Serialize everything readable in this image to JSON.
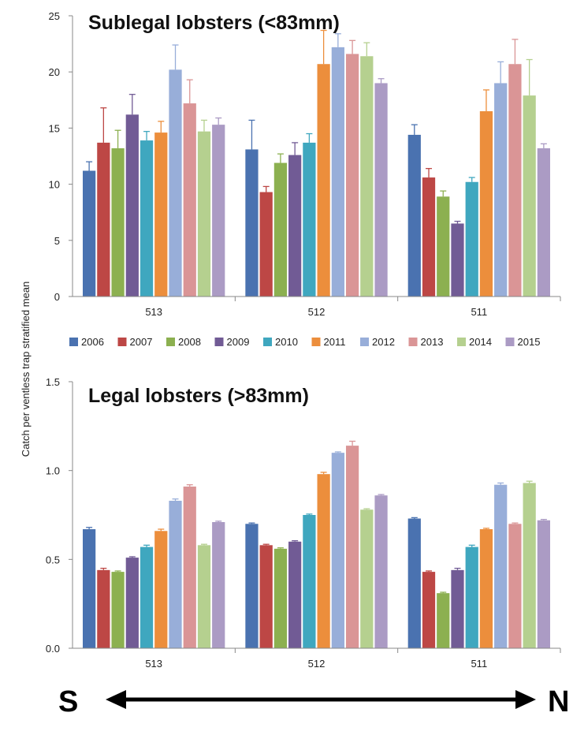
{
  "colors": {
    "2006": "#4a72b0",
    "2007": "#bd4745",
    "2008": "#8cb050",
    "2009": "#715b95",
    "2010": "#3fa7bf",
    "2011": "#ec8e3c",
    "2012": "#98aed9",
    "2013": "#da9596",
    "2014": "#b5d08f",
    "2015": "#ab9bc4"
  },
  "ylabel": "Catch per ventless trap stratified mean",
  "legend": [
    "2006",
    "2007",
    "2008",
    "2009",
    "2010",
    "2011",
    "2012",
    "2013",
    "2014",
    "2015"
  ],
  "direction": {
    "left": "S",
    "right": "N"
  },
  "chart_data": [
    {
      "type": "bar",
      "title": "Sublegal lobsters (<83mm)",
      "categories": [
        "513",
        "512",
        "511"
      ],
      "yticks": [
        "0",
        "5",
        "10",
        "15",
        "20",
        "25"
      ],
      "ylim": [
        0,
        25
      ],
      "series": [
        {
          "name": "2006",
          "values": [
            11.2,
            13.1,
            14.4
          ],
          "errors": [
            0.8,
            2.6,
            0.9
          ]
        },
        {
          "name": "2007",
          "values": [
            13.7,
            9.3,
            10.6
          ],
          "errors": [
            3.1,
            0.5,
            0.8
          ]
        },
        {
          "name": "2008",
          "values": [
            13.2,
            11.9,
            8.9
          ],
          "errors": [
            1.6,
            0.8,
            0.5
          ]
        },
        {
          "name": "2009",
          "values": [
            16.2,
            12.6,
            6.5
          ],
          "errors": [
            1.8,
            1.1,
            0.2
          ]
        },
        {
          "name": "2010",
          "values": [
            13.9,
            13.7,
            10.2
          ],
          "errors": [
            0.8,
            0.8,
            0.4
          ]
        },
        {
          "name": "2011",
          "values": [
            14.6,
            20.7,
            16.5
          ],
          "errors": [
            1.0,
            3.0,
            1.9
          ]
        },
        {
          "name": "2012",
          "values": [
            20.2,
            22.2,
            19.0
          ],
          "errors": [
            2.2,
            1.2,
            1.9
          ]
        },
        {
          "name": "2013",
          "values": [
            17.2,
            21.6,
            20.7
          ],
          "errors": [
            2.1,
            1.2,
            2.2
          ]
        },
        {
          "name": "2014",
          "values": [
            14.7,
            21.4,
            17.9
          ],
          "errors": [
            1.0,
            1.2,
            3.2
          ]
        },
        {
          "name": "2015",
          "values": [
            15.3,
            19.0,
            13.2
          ],
          "errors": [
            0.6,
            0.4,
            0.4
          ]
        }
      ]
    },
    {
      "type": "bar",
      "title": "Legal lobsters (>83mm)",
      "categories": [
        "513",
        "512",
        "511"
      ],
      "yticks": [
        "0.0",
        "0.5",
        "1.0",
        "1.5"
      ],
      "ylim": [
        0,
        1.5
      ],
      "series": [
        {
          "name": "2006",
          "values": [
            0.67,
            0.7,
            0.73
          ],
          "errors": [
            0.01,
            0.005,
            0.005
          ]
        },
        {
          "name": "2007",
          "values": [
            0.44,
            0.58,
            0.43
          ],
          "errors": [
            0.01,
            0.005,
            0.005
          ]
        },
        {
          "name": "2008",
          "values": [
            0.43,
            0.56,
            0.31
          ],
          "errors": [
            0.005,
            0.005,
            0.005
          ]
        },
        {
          "name": "2009",
          "values": [
            0.51,
            0.6,
            0.44
          ],
          "errors": [
            0.005,
            0.005,
            0.01
          ]
        },
        {
          "name": "2010",
          "values": [
            0.57,
            0.75,
            0.57
          ],
          "errors": [
            0.01,
            0.005,
            0.01
          ]
        },
        {
          "name": "2011",
          "values": [
            0.66,
            0.98,
            0.67
          ],
          "errors": [
            0.01,
            0.01,
            0.005
          ]
        },
        {
          "name": "2012",
          "values": [
            0.83,
            1.1,
            0.92
          ],
          "errors": [
            0.01,
            0.005,
            0.01
          ]
        },
        {
          "name": "2013",
          "values": [
            0.91,
            1.14,
            0.7
          ],
          "errors": [
            0.01,
            0.025,
            0.005
          ]
        },
        {
          "name": "2014",
          "values": [
            0.58,
            0.78,
            0.93
          ],
          "errors": [
            0.005,
            0.005,
            0.01
          ]
        },
        {
          "name": "2015",
          "values": [
            0.71,
            0.86,
            0.72
          ],
          "errors": [
            0.005,
            0.005,
            0.005
          ]
        }
      ]
    }
  ]
}
